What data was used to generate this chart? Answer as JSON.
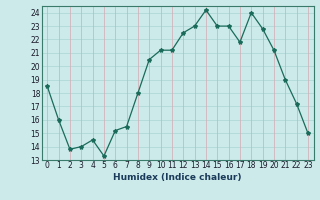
{
  "x": [
    0,
    1,
    2,
    3,
    4,
    5,
    6,
    7,
    8,
    9,
    10,
    11,
    12,
    13,
    14,
    15,
    16,
    17,
    18,
    19,
    20,
    21,
    22,
    23
  ],
  "y": [
    18.5,
    16.0,
    13.8,
    14.0,
    14.5,
    13.3,
    15.2,
    15.5,
    18.0,
    20.5,
    21.2,
    21.2,
    22.5,
    23.0,
    24.2,
    23.0,
    23.0,
    21.8,
    24.0,
    22.8,
    21.2,
    19.0,
    17.2,
    15.0
  ],
  "xlabel": "Humidex (Indice chaleur)",
  "xlim": [
    -0.5,
    23.5
  ],
  "ylim": [
    13,
    24.5
  ],
  "yticks": [
    13,
    14,
    15,
    16,
    17,
    18,
    19,
    20,
    21,
    22,
    23,
    24
  ],
  "xtick_labels": [
    "0",
    "1",
    "2",
    "3",
    "4",
    "5",
    "6",
    "7",
    "8",
    "9",
    "10",
    "11",
    "12",
    "13",
    "14",
    "15",
    "16",
    "17",
    "18",
    "19",
    "20",
    "21",
    "22",
    "23"
  ],
  "line_color": "#1a6b5a",
  "marker": "*",
  "bg_color": "#cceaea",
  "grid_h_color": "#b0d8d8",
  "grid_v_color": "#d4aab0"
}
